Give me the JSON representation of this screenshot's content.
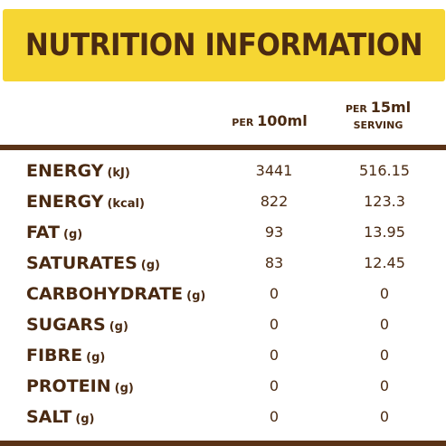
{
  "title": "NUTRITION INFORMATION",
  "colors": {
    "banner": "#f6d633",
    "text": "#4a2a12",
    "rule": "#5a3317"
  },
  "columns": {
    "per100": {
      "prefix": "PER",
      "amount": "100ml"
    },
    "serving": {
      "prefix": "PER",
      "amount": "15ml",
      "suffix": "SERVING"
    }
  },
  "rows": [
    {
      "label": "ENERGY",
      "unit": "(kJ)",
      "per100": "3441",
      "serving": "516.15"
    },
    {
      "label": "ENERGY",
      "unit": "(kcal)",
      "per100": "822",
      "serving": "123.3"
    },
    {
      "label": "FAT",
      "unit": "(g)",
      "per100": "93",
      "serving": "13.95"
    },
    {
      "label": "SATURATES",
      "unit": "(g)",
      "per100": "83",
      "serving": "12.45"
    },
    {
      "label": "CARBOHYDRATE",
      "unit": "(g)",
      "per100": "0",
      "serving": "0"
    },
    {
      "label": "SUGARS",
      "unit": "(g)",
      "per100": "0",
      "serving": "0"
    },
    {
      "label": "FIBRE",
      "unit": "(g)",
      "per100": "0",
      "serving": "0"
    },
    {
      "label": "PROTEIN",
      "unit": "(g)",
      "per100": "0",
      "serving": "0"
    },
    {
      "label": "SALT",
      "unit": "(g)",
      "per100": "0",
      "serving": "0"
    }
  ]
}
